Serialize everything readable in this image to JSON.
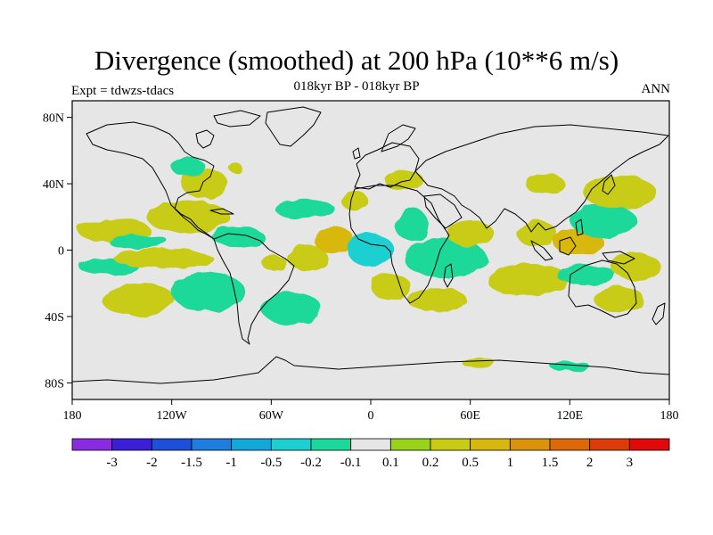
{
  "header": {
    "title": "Divergence (smoothed) at 200 hPa (10**6 m/s)",
    "subtitle": "018kyr BP - 018kyr BP",
    "experiment": "Expt = tdwzs-tdacs",
    "season": "ANN"
  },
  "map": {
    "projection": "cylindrical-equidistant",
    "lon_range": [
      -180,
      180
    ],
    "lat_range": [
      -90,
      90
    ],
    "lat_ticks": [
      {
        "lat": 80,
        "label": "80N"
      },
      {
        "lat": 40,
        "label": "40N"
      },
      {
        "lat": 0,
        "label": "0"
      },
      {
        "lat": -40,
        "label": "40S"
      },
      {
        "lat": -80,
        "label": "80S"
      }
    ],
    "lon_ticks": [
      {
        "lon": -180,
        "label": "180"
      },
      {
        "lon": -120,
        "label": "120W"
      },
      {
        "lon": -60,
        "label": "60W"
      },
      {
        "lon": 0,
        "label": "0"
      },
      {
        "lon": 60,
        "label": "60E"
      },
      {
        "lon": 120,
        "label": "120E"
      },
      {
        "lon": 180,
        "label": "180"
      }
    ],
    "background_color": "#e6e6e6",
    "coastline_color": "#000000"
  },
  "colorbar": {
    "colors": [
      "#8a2be2",
      "#3a1fd6",
      "#1e4fd8",
      "#1e7ee0",
      "#12a8dc",
      "#1ccfd0",
      "#1bd99a",
      "#e6e6e6",
      "#98d21a",
      "#c8cc14",
      "#d8b80e",
      "#dc920a",
      "#dc6808",
      "#dc3c0a",
      "#e00a0a"
    ],
    "labels": [
      "-3",
      "-2",
      "-1.5",
      "-1",
      "-0.5",
      "-0.2",
      "-0.1",
      "0.1",
      "0.2",
      "0.5",
      "1",
      "1.5",
      "2",
      "3"
    ]
  },
  "anomaly_blobs": [
    {
      "lon": -155,
      "lat": 12,
      "rlon": 22,
      "rlat": 7,
      "level": 0.2
    },
    {
      "lon": -140,
      "lat": 5,
      "rlon": 18,
      "rlat": 4,
      "level": -0.2
    },
    {
      "lon": -158,
      "lat": -10,
      "rlon": 18,
      "rlat": 5,
      "level": -0.2
    },
    {
      "lon": -140,
      "lat": -30,
      "rlon": 22,
      "rlat": 10,
      "level": 0.2
    },
    {
      "lon": -110,
      "lat": 20,
      "rlon": 25,
      "rlat": 10,
      "level": 0.2
    },
    {
      "lon": -125,
      "lat": -5,
      "rlon": 30,
      "rlat": 6,
      "level": 0.2
    },
    {
      "lon": -98,
      "lat": -25,
      "rlon": 22,
      "rlat": 12,
      "level": -0.2
    },
    {
      "lon": -80,
      "lat": 8,
      "rlon": 16,
      "rlat": 6,
      "level": -0.2
    },
    {
      "lon": -100,
      "lat": 40,
      "rlon": 14,
      "rlat": 9,
      "level": 0.2
    },
    {
      "lon": -110,
      "lat": 50,
      "rlon": 10,
      "rlat": 6,
      "level": -0.2
    },
    {
      "lon": -82,
      "lat": 50,
      "rlon": 4,
      "rlat": 3,
      "level": 0.2
    },
    {
      "lon": -58,
      "lat": -8,
      "rlon": 8,
      "rlat": 4,
      "level": 0.2
    },
    {
      "lon": -48,
      "lat": -35,
      "rlon": 18,
      "rlat": 10,
      "level": -0.2
    },
    {
      "lon": -38,
      "lat": -5,
      "rlon": 12,
      "rlat": 8,
      "level": 0.2
    },
    {
      "lon": -22,
      "lat": 6,
      "rlon": 12,
      "rlat": 8,
      "level": 0.5
    },
    {
      "lon": -40,
      "lat": 25,
      "rlon": 18,
      "rlat": 6,
      "level": -0.2
    },
    {
      "lon": -10,
      "lat": 30,
      "rlon": 8,
      "rlat": 6,
      "level": 0.2
    },
    {
      "lon": 0,
      "lat": 0,
      "rlon": 14,
      "rlat": 10,
      "level": -0.5
    },
    {
      "lon": 12,
      "lat": -22,
      "rlon": 12,
      "rlat": 8,
      "level": 0.2
    },
    {
      "lon": 25,
      "lat": 15,
      "rlon": 10,
      "rlat": 10,
      "level": -0.2
    },
    {
      "lon": 45,
      "lat": -5,
      "rlon": 25,
      "rlat": 12,
      "level": -0.2
    },
    {
      "lon": 40,
      "lat": -30,
      "rlon": 18,
      "rlat": 7,
      "level": 0.2
    },
    {
      "lon": 60,
      "lat": 10,
      "rlon": 14,
      "rlat": 8,
      "level": 0.2
    },
    {
      "lon": 20,
      "lat": 42,
      "rlon": 12,
      "rlat": 6,
      "level": 0.2
    },
    {
      "lon": 95,
      "lat": -18,
      "rlon": 25,
      "rlat": 10,
      "level": 0.2
    },
    {
      "lon": 100,
      "lat": 10,
      "rlon": 12,
      "rlat": 8,
      "level": 0.2
    },
    {
      "lon": 125,
      "lat": 5,
      "rlon": 15,
      "rlat": 8,
      "level": 0.5
    },
    {
      "lon": 140,
      "lat": 18,
      "rlon": 20,
      "rlat": 10,
      "level": -0.2
    },
    {
      "lon": 150,
      "lat": 35,
      "rlon": 22,
      "rlat": 10,
      "level": 0.2
    },
    {
      "lon": 130,
      "lat": -15,
      "rlon": 18,
      "rlat": 6,
      "level": -0.2
    },
    {
      "lon": 160,
      "lat": -10,
      "rlon": 15,
      "rlat": 8,
      "level": 0.2
    },
    {
      "lon": 150,
      "lat": -30,
      "rlon": 15,
      "rlat": 8,
      "level": 0.2
    },
    {
      "lon": 65,
      "lat": -68,
      "rlon": 10,
      "rlat": 3,
      "level": 0.2
    },
    {
      "lon": 120,
      "lat": -70,
      "rlon": 12,
      "rlat": 3,
      "level": -0.2
    },
    {
      "lon": 105,
      "lat": 40,
      "rlon": 12,
      "rlat": 6,
      "level": 0.2
    }
  ]
}
